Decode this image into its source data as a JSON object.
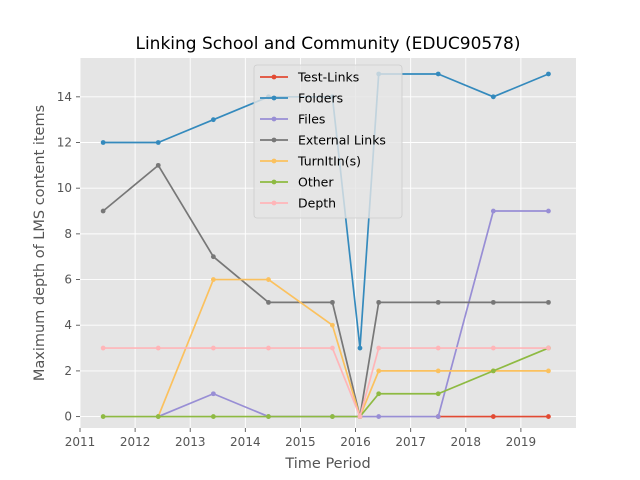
{
  "chart_data": {
    "type": "line",
    "title": "Linking School and Community (EDUC90578)",
    "xlabel": "Time Period",
    "ylabel": "Maximum depth of LMS content items",
    "xlim": [
      2011,
      2020
    ],
    "ylim": [
      -0.5,
      15.7
    ],
    "xticks": [
      2011,
      2012,
      2013,
      2014,
      2015,
      2016,
      2017,
      2018,
      2019
    ],
    "yticks": [
      0,
      2,
      4,
      6,
      8,
      10,
      12,
      14
    ],
    "grid": true,
    "legend_position": "top-center",
    "x": [
      2011.42,
      2012.42,
      2013.42,
      2014.42,
      2015.58,
      2016.08,
      2016.42,
      2017.5,
      2018.5,
      2019.5
    ],
    "series": [
      {
        "name": "Test-Links",
        "color": "#E24A33",
        "values": [
          null,
          null,
          null,
          null,
          null,
          null,
          null,
          0,
          0,
          0
        ]
      },
      {
        "name": "Folders",
        "color": "#348ABD",
        "values": [
          12,
          12,
          13,
          14,
          14,
          3,
          15,
          15,
          14,
          15
        ]
      },
      {
        "name": "Files",
        "color": "#988ED5",
        "values": [
          null,
          0,
          1,
          0,
          0,
          0,
          0,
          0,
          9,
          9
        ]
      },
      {
        "name": "External Links",
        "color": "#777777",
        "values": [
          9,
          11,
          7,
          5,
          5,
          0,
          5,
          5,
          5,
          5
        ]
      },
      {
        "name": "TurnItIn(s)",
        "color": "#FBC15E",
        "values": [
          null,
          0,
          6,
          6,
          4,
          0,
          2,
          2,
          2,
          2
        ]
      },
      {
        "name": "Other",
        "color": "#8EBA42",
        "values": [
          0,
          0,
          0,
          0,
          0,
          0,
          1,
          1,
          2,
          3
        ]
      },
      {
        "name": "Depth",
        "color": "#FFB5B8",
        "values": [
          3,
          3,
          3,
          3,
          3,
          0,
          3,
          3,
          3,
          3
        ]
      }
    ]
  }
}
